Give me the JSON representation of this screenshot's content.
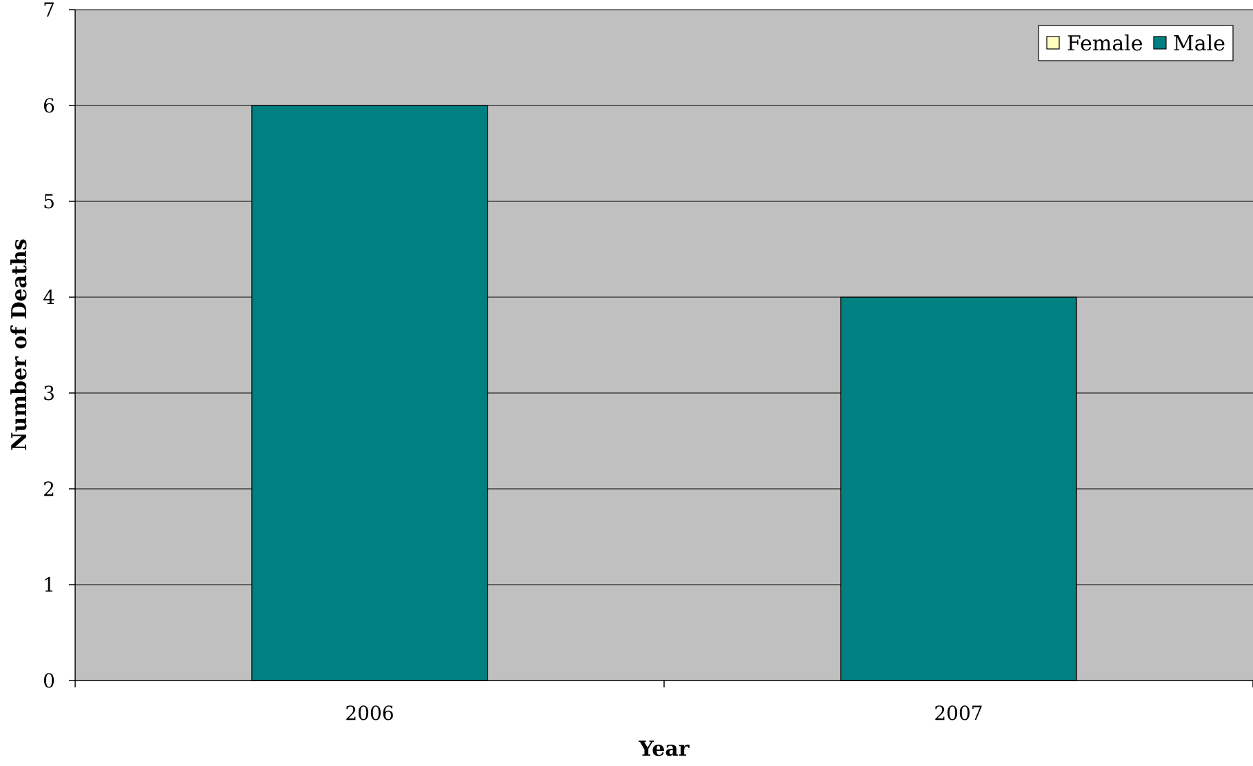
{
  "chart_data": {
    "type": "bar",
    "title": "",
    "xlabel": "Year",
    "ylabel": "Number of Deaths",
    "categories": [
      "2006",
      "2007"
    ],
    "series": [
      {
        "name": "Female",
        "values": [
          0,
          0
        ],
        "color": "#FFFFC0"
      },
      {
        "name": "Male",
        "values": [
          6,
          4
        ],
        "color": "#008080"
      }
    ],
    "ylim": [
      0,
      7
    ],
    "yticks": [
      0,
      1,
      2,
      3,
      4,
      5,
      6,
      7
    ],
    "grid": true,
    "legend_position": "top-right",
    "plot_background": "#C0C0C0"
  }
}
